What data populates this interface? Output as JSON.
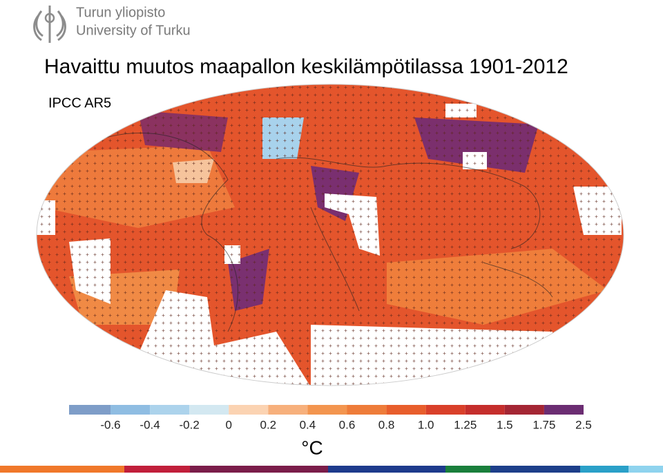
{
  "logo": {
    "line1": "Turun yliopisto",
    "line2": "University of Turku"
  },
  "title": "Havaittu muutos maapallon keskilämpötilassa 1901-2012",
  "source": "IPCC AR5",
  "colorbar": {
    "colors": [
      "#7e9dc8",
      "#8fbde2",
      "#acd3ec",
      "#d3e8f1",
      "#fbd3b2",
      "#f7b07c",
      "#f3954f",
      "#ee7c3a",
      "#e85e2c",
      "#d9402a",
      "#c52e2c",
      "#a42634",
      "#6b2d72"
    ],
    "labels": [
      "-0.6",
      "-0.4",
      "-0.2",
      "0",
      "0.2",
      "0.4",
      "0.6",
      "0.8",
      "1.0",
      "1.25",
      "1.5",
      "1.75",
      "2.5"
    ],
    "unit": "°C"
  }
}
